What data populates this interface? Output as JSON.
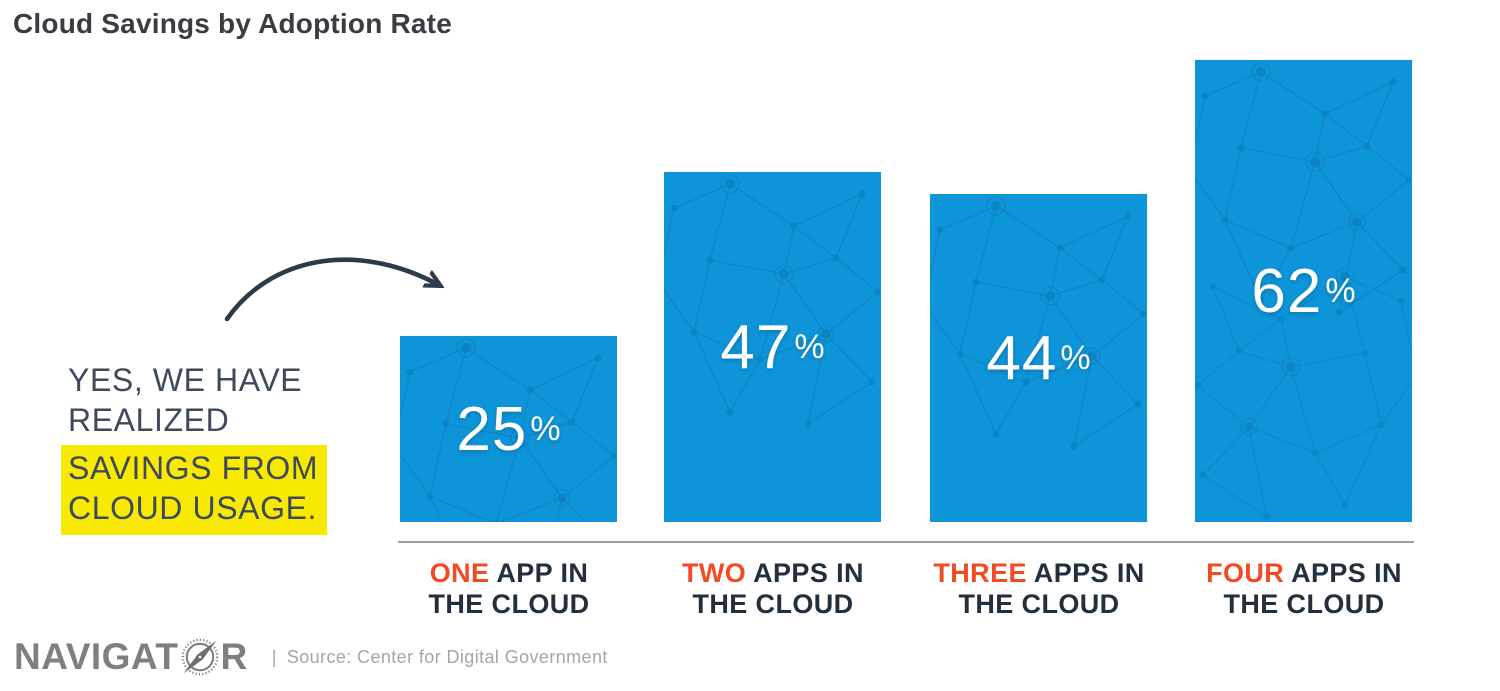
{
  "page_title": "Cloud Savings by Adoption Rate",
  "annotation": {
    "line1": "YES, WE HAVE",
    "line2": "REALIZED",
    "line3": "SAVINGS FROM",
    "line4": "CLOUD USAGE.",
    "highlight_color": "#f8e900",
    "text_color": "#3e4a5b"
  },
  "chart_data": {
    "type": "bar",
    "title": "Cloud Savings by Adoption Rate",
    "unit": "%",
    "categories": [
      "ONE APP IN THE CLOUD",
      "TWO APPS IN THE CLOUD",
      "THREE APPS IN THE CLOUD",
      "FOUR APPS IN THE CLOUD"
    ],
    "values": [
      25,
      47,
      44,
      62
    ],
    "value_labels": [
      "25%",
      "47%",
      "44%",
      "62%"
    ],
    "categories_split": [
      {
        "em": "ONE",
        "rest": " APP IN",
        "line2": "THE CLOUD"
      },
      {
        "em": "TWO",
        "rest": " APPS IN",
        "line2": "THE CLOUD"
      },
      {
        "em": "THREE",
        "rest": " APPS IN",
        "line2": "THE CLOUD"
      },
      {
        "em": "FOUR",
        "rest": " APPS IN",
        "line2": "THE CLOUD"
      }
    ],
    "bar_color": "#0e94d8",
    "pattern_color": "#0a6da4",
    "emphasis_color": "#f24a22",
    "label_color": "#22303e",
    "value_text_color": "#ffffff",
    "arrow_color": "#2d3a4a",
    "baseline_color": "#9c9c9c",
    "ylim": [
      0,
      62
    ],
    "grid": false,
    "legend": false
  },
  "footer": {
    "logo_pre": "NAVIGAT",
    "logo_post": "R",
    "logo_name": "NAVIGATOR",
    "separator": "|",
    "source": "Source: Center for Digital Government"
  }
}
